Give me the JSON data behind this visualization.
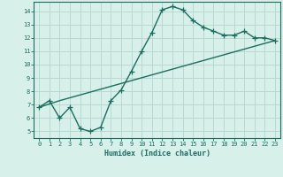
{
  "xlabel": "Humidex (Indice chaleur)",
  "background_color": "#d8f0ea",
  "grid_color": "#b8d8d0",
  "line_color": "#1a6e60",
  "xlim": [
    -0.5,
    23.5
  ],
  "ylim": [
    4.5,
    14.7
  ],
  "xticks": [
    0,
    1,
    2,
    3,
    4,
    5,
    6,
    7,
    8,
    9,
    10,
    11,
    12,
    13,
    14,
    15,
    16,
    17,
    18,
    19,
    20,
    21,
    22,
    23
  ],
  "yticks": [
    5,
    6,
    7,
    8,
    9,
    10,
    11,
    12,
    13,
    14
  ],
  "curve1_x": [
    0,
    1,
    2,
    3,
    4,
    5,
    6,
    7,
    8,
    9,
    10,
    11,
    12,
    13,
    14,
    15,
    16,
    17,
    18,
    19,
    20,
    21,
    22,
    23
  ],
  "curve1_y": [
    6.8,
    7.3,
    6.0,
    6.8,
    5.2,
    5.0,
    5.3,
    7.3,
    8.1,
    9.5,
    11.0,
    12.4,
    14.1,
    14.35,
    14.1,
    13.3,
    12.8,
    12.5,
    12.2,
    12.2,
    12.5,
    12.0,
    12.0,
    11.8
  ],
  "curve2_x": [
    0,
    2,
    23
  ],
  "curve2_y": [
    6.8,
    7.3,
    11.8
  ],
  "marker_size": 4,
  "linewidth": 1.0
}
